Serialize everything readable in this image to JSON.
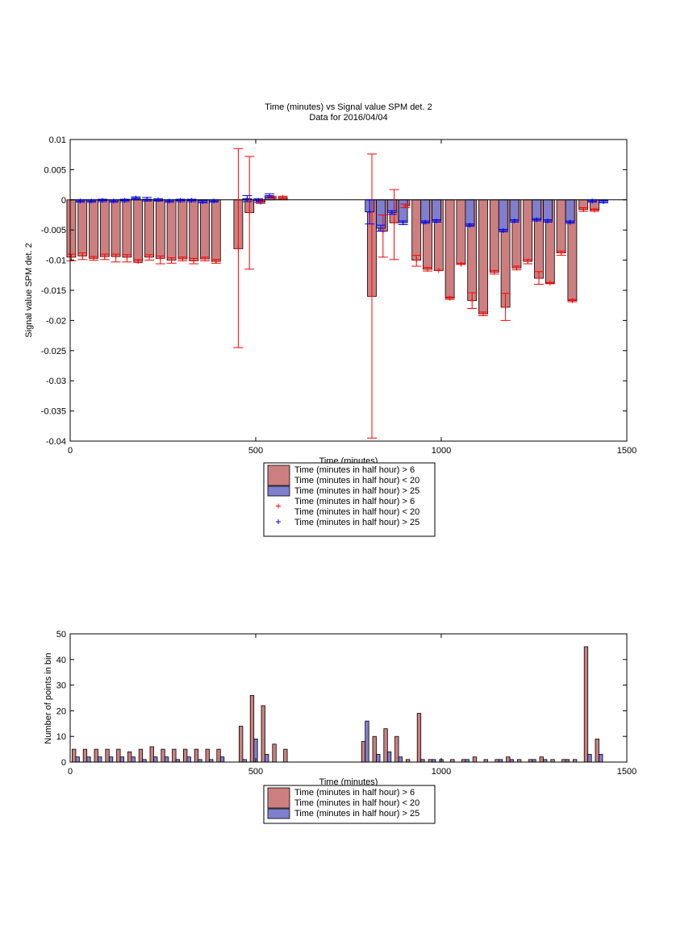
{
  "chart_data": [
    {
      "type": "bar",
      "title": "Time (minutes) vs Signal value SPM det. 2",
      "subtitle": "Data for 2016/04/04",
      "xlabel": "Time (minutes)",
      "ylabel": "Signal value SPM det. 2",
      "xlim": [
        0,
        1500
      ],
      "ylim": [
        -0.04,
        0.01
      ],
      "xticks": [
        "0",
        "500",
        "1000",
        "1500"
      ],
      "yticks": [
        "0.01",
        "0.005",
        "0",
        "-0.005",
        "-0.01",
        "-0.015",
        "-0.02",
        "-0.025",
        "-0.03",
        "-0.035",
        "-0.04"
      ],
      "grid": false,
      "legend_position": "below",
      "legend": [
        {
          "kind": "bar",
          "color": "#cd7f7f",
          "lines": [
            "Time (minutes in half hour) > 6",
            "Time (minutes in half hour) < 20"
          ]
        },
        {
          "kind": "bar",
          "color": "#7f7fcd",
          "lines": [
            "Time (minutes in half hour) > 25"
          ]
        },
        {
          "kind": "marker",
          "color": "#ff0000",
          "lines": [
            "Time (minutes in half hour) > 6",
            "Time (minutes in half hour) < 20"
          ]
        },
        {
          "kind": "marker",
          "color": "#0000ff",
          "lines": [
            "Time (minutes in half hour) > 25"
          ]
        }
      ],
      "series": [
        {
          "color": "#cd7f7f",
          "marker_color": "#ff0000",
          "x": [
            15,
            45,
            75,
            105,
            135,
            165,
            195,
            225,
            255,
            285,
            315,
            345,
            375,
            405,
            465,
            495,
            525,
            555,
            585,
            825,
            855,
            885,
            915,
            945,
            975,
            1005,
            1035,
            1065,
            1095,
            1125,
            1155,
            1185,
            1215,
            1245,
            1275,
            1305,
            1335,
            1365,
            1395,
            1425
          ],
          "values": [
            -0.0095,
            -0.0093,
            -0.0097,
            -0.0094,
            -0.0094,
            -0.0095,
            -0.0102,
            -0.0095,
            -0.0097,
            -0.01,
            -0.0098,
            -0.0101,
            -0.0098,
            -0.0102,
            -0.0081,
            -0.0021,
            -0.0004,
            0.0004,
            0.0004,
            -0.016,
            -0.0052,
            -0.0038,
            -0.001,
            -0.01,
            -0.0115,
            -0.0117,
            -0.0163,
            -0.0107,
            -0.0167,
            -0.0189,
            -0.012,
            -0.0178,
            -0.0113,
            -0.0102,
            -0.013,
            -0.0138,
            -0.0088,
            -0.0167,
            -0.0016,
            -0.0017
          ],
          "err_low": [
            -0.0101,
            -0.0099,
            -0.01,
            -0.0099,
            -0.0103,
            -0.0103,
            -0.0104,
            -0.01,
            -0.0106,
            -0.0105,
            -0.0101,
            -0.0106,
            -0.0101,
            -0.0105,
            -0.0245,
            -0.0115,
            -0.0006,
            0.0003,
            0.0002,
            -0.0395,
            -0.0095,
            -0.0099,
            -0.0013,
            -0.011,
            -0.0118,
            -0.0117,
            -0.0165,
            -0.0107,
            -0.018,
            -0.0192,
            -0.0123,
            -0.02,
            -0.0116,
            -0.0106,
            -0.014,
            -0.0139,
            -0.0092,
            -0.0169,
            -0.0019,
            -0.0019
          ],
          "err_high": [
            -0.009,
            -0.0088,
            -0.0094,
            -0.009,
            -0.009,
            -0.0091,
            -0.0099,
            -0.0091,
            -0.0093,
            -0.0096,
            -0.0095,
            -0.0097,
            -0.0095,
            -0.0099,
            0.0085,
            0.0072,
            -0.0002,
            0.0006,
            0.0006,
            0.0076,
            -0.0025,
            0.0017,
            -0.0007,
            -0.0092,
            -0.0112,
            -0.0117,
            -0.0161,
            -0.0105,
            -0.0154,
            -0.0186,
            -0.0117,
            -0.0155,
            -0.011,
            -0.0099,
            -0.0119,
            -0.0137,
            -0.0085,
            -0.0165,
            -0.0013,
            -0.0015
          ]
        },
        {
          "color": "#7f7fcd",
          "marker_color": "#0000ff",
          "x": [
            15,
            45,
            75,
            105,
            135,
            165,
            195,
            225,
            255,
            285,
            315,
            345,
            375,
            465,
            495,
            525,
            795,
            825,
            855,
            885,
            945,
            975,
            1065,
            1155,
            1185,
            1245,
            1275,
            1335,
            1395,
            1425
          ],
          "values": [
            -0.0002,
            -0.0002,
            -0.0001,
            -0.0002,
            -0.0001,
            0.0003,
            0.0001,
            0.0,
            -0.0002,
            -0.0001,
            -0.0001,
            -0.0003,
            -0.0002,
            0.0002,
            -0.0001,
            0.0007,
            -0.002,
            -0.0047,
            -0.0021,
            -0.0038,
            -0.0037,
            -0.0035,
            -0.0042,
            -0.0051,
            -0.0035,
            -0.0033,
            -0.0035,
            -0.0037,
            -0.0002,
            -0.0003
          ],
          "err_low": [
            -0.0004,
            -0.0004,
            -0.0003,
            -0.0004,
            -0.0003,
            0.0001,
            -0.0002,
            -0.0002,
            -0.0004,
            -0.0003,
            -0.0003,
            -0.0005,
            -0.0004,
            -0.0003,
            -0.0004,
            0.0004,
            -0.004,
            -0.0052,
            -0.0024,
            -0.0041,
            -0.0039,
            -0.0037,
            -0.0044,
            -0.0053,
            -0.0037,
            -0.0035,
            -0.0037,
            -0.0039,
            -0.0004,
            -0.0005
          ],
          "err_high": [
            0.0,
            0.0,
            0.0001,
            0.0,
            0.0001,
            0.0005,
            0.0004,
            0.0002,
            0.0,
            0.0001,
            0.0001,
            -0.0001,
            0.0,
            0.0007,
            0.0002,
            0.001,
            0.0,
            -0.0042,
            -0.0018,
            -0.0035,
            -0.0035,
            -0.0033,
            -0.004,
            -0.0049,
            -0.0033,
            -0.0031,
            -0.0033,
            -0.0035,
            0.0,
            -0.0001
          ]
        }
      ]
    },
    {
      "type": "bar",
      "xlabel": "Time (minutes)",
      "ylabel": "Number of points in bin",
      "xlim": [
        0,
        1500
      ],
      "ylim": [
        0,
        50
      ],
      "xticks": [
        "0",
        "500",
        "1000",
        "1500"
      ],
      "yticks": [
        "50",
        "40",
        "30",
        "20",
        "10",
        "0"
      ],
      "grid": false,
      "legend_position": "below",
      "legend": [
        {
          "kind": "bar",
          "color": "#cd7f7f",
          "lines": [
            "Time (minutes in half hour) > 6",
            "Time (minutes in half hour) < 20"
          ]
        },
        {
          "kind": "bar",
          "color": "#7f7fcd",
          "lines": [
            "Time (minutes in half hour) > 25"
          ]
        }
      ],
      "series": [
        {
          "color": "#cd7f7f",
          "x": [
            15,
            45,
            75,
            105,
            135,
            165,
            195,
            225,
            255,
            285,
            315,
            345,
            375,
            405,
            465,
            495,
            525,
            555,
            585,
            795,
            825,
            855,
            885,
            915,
            945,
            975,
            1005,
            1035,
            1065,
            1095,
            1125,
            1155,
            1185,
            1215,
            1245,
            1275,
            1305,
            1335,
            1365,
            1395,
            1425
          ],
          "values": [
            5,
            5,
            5,
            5,
            5,
            4,
            5,
            6,
            5,
            5,
            5,
            5,
            5,
            5,
            14,
            26,
            22,
            7,
            5,
            8,
            10,
            13,
            10,
            1,
            19,
            1,
            1,
            1,
            1,
            2,
            1,
            1,
            2,
            1,
            1,
            2,
            1,
            1,
            1,
            45,
            9
          ],
          "err_low": [],
          "err_high": []
        },
        {
          "color": "#7f7fcd",
          "x": [
            15,
            45,
            75,
            105,
            135,
            165,
            195,
            225,
            255,
            285,
            315,
            345,
            375,
            405,
            465,
            495,
            525,
            795,
            825,
            855,
            885,
            945,
            975,
            1065,
            1155,
            1185,
            1245,
            1275,
            1335,
            1395,
            1425
          ],
          "values": [
            2,
            2,
            2,
            2,
            2,
            2,
            1,
            2,
            2,
            1,
            2,
            1,
            1,
            2,
            1,
            9,
            3,
            16,
            3,
            4,
            2,
            1,
            1,
            1,
            1,
            1,
            1,
            1,
            1,
            3,
            3
          ],
          "err_low": [],
          "err_high": []
        }
      ]
    }
  ]
}
